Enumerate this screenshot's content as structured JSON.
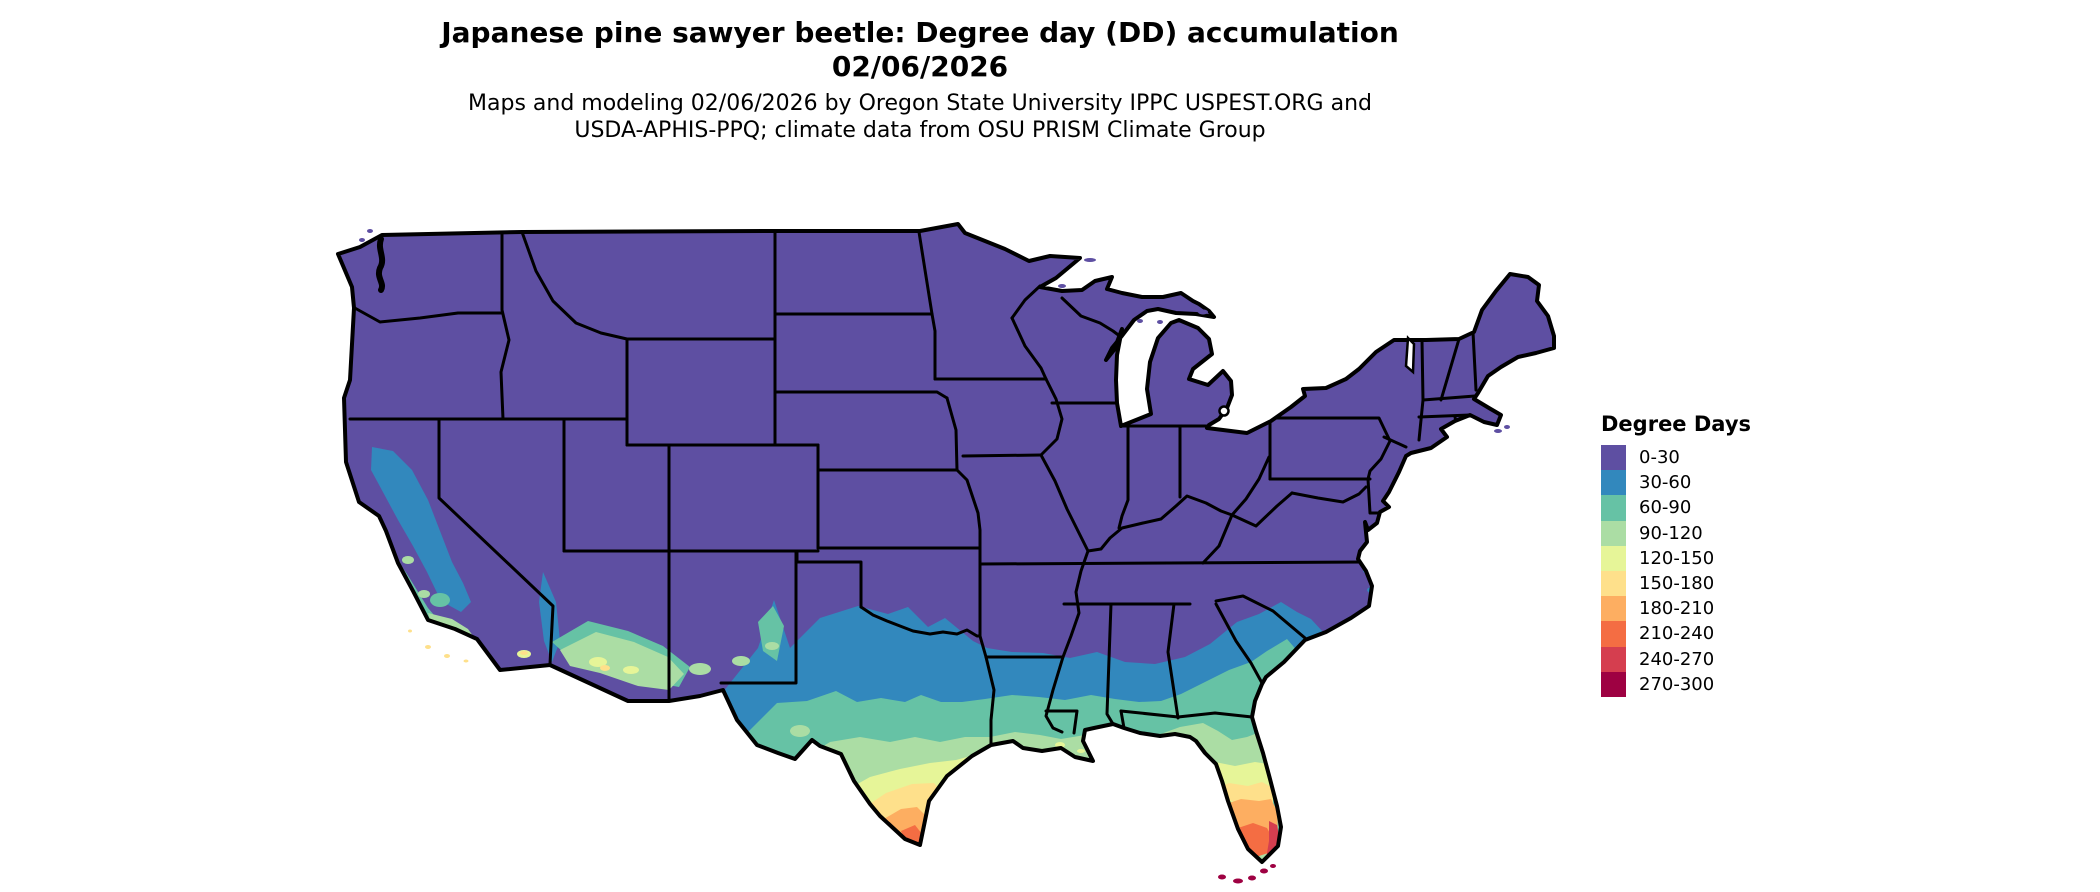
{
  "title": {
    "line1": "Japanese pine sawyer beetle: Degree day (DD) accumulation",
    "line2": "02/06/2026"
  },
  "subtitle": {
    "line1": "Maps and modeling 02/06/2026 by Oregon State University IPPC USPEST.ORG and",
    "line2": "USDA-APHIS-PPQ; climate data from OSU PRISM Climate Group"
  },
  "legend": {
    "title": "Degree Days",
    "classes": [
      {
        "label": "0-30",
        "color": "#5e4fa2"
      },
      {
        "label": "30-60",
        "color": "#3288bd"
      },
      {
        "label": "60-90",
        "color": "#66c2a5"
      },
      {
        "label": "90-120",
        "color": "#abdda4"
      },
      {
        "label": "120-150",
        "color": "#e6f598"
      },
      {
        "label": "150-180",
        "color": "#fee08b"
      },
      {
        "label": "180-210",
        "color": "#fdae61"
      },
      {
        "label": "210-240",
        "color": "#f46d43"
      },
      {
        "label": "240-270",
        "color": "#d53e4f"
      },
      {
        "label": "270-300",
        "color": "#9e0142"
      }
    ]
  },
  "map": {
    "region": "Contiguous United States",
    "boundary_color": "#000000",
    "water_color": "#ffffff",
    "unit": "degree days (DD)"
  },
  "chart_data": {
    "type": "heatmap",
    "subtype": "choropleth-map",
    "title": "Japanese pine sawyer beetle: Degree day (DD) accumulation 02/06/2026",
    "legend_title": "Degree Days",
    "legend_position": "right",
    "bins": [
      "0-30",
      "30-60",
      "60-90",
      "90-120",
      "120-150",
      "150-180",
      "180-210",
      "210-240",
      "240-270",
      "270-300"
    ],
    "palette": [
      "#5e4fa2",
      "#3288bd",
      "#66c2a5",
      "#abdda4",
      "#e6f598",
      "#fee08b",
      "#fdae61",
      "#f46d43",
      "#d53e4f",
      "#9e0142"
    ],
    "pattern_summary": "Nearly all of the northern, central and eastern US shows 0-30 DD (purple). Values increase southward: 30-60 DD across central Texas and the Gulf/South Atlantic coastal plain; 60-120 DD along the immediate Gulf Coast and northern Florida; 120-210 DD in south Texas and central/south Florida; 210-270 DD at the south Texas tip and southern Florida; 270-300 DD in the Florida Keys. Elevated values (30-180 DD) also appear in California's Central Valley, the central/southern California coast, the lower Colorado River valley, and the southern Arizona / New Mexico deserts."
  }
}
